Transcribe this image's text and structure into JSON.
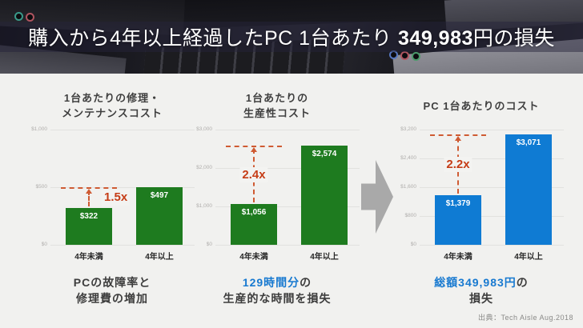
{
  "header": {
    "title_prefix": "購入から4年以上経過したPC 1台あたり ",
    "title_number": "349,983",
    "title_suffix": "円の損失"
  },
  "footer": {
    "source": "出典：Tech Aisle Aug.2018"
  },
  "icons": {
    "flow_arrow": "right-block-arrow"
  },
  "colors": {
    "green_bar": "#1e7b1f",
    "blue_bar": "#0f7bd3",
    "accent_red": "#c63d17",
    "highlight_blue": "#1779d0",
    "background": "#f1f1ef"
  },
  "chart_data": [
    {
      "type": "bar",
      "title": "1台あたりの修理・メンテナンスコスト",
      "title_lines": [
        "1台あたりの修理・",
        "メンテナンスコスト"
      ],
      "categories": [
        "4年未満",
        "4年以上"
      ],
      "values": [
        322,
        497
      ],
      "bar_labels": [
        "$322",
        "$497"
      ],
      "multiplier": "1.5x",
      "bar_color": "#1e7b1f",
      "ylim": [
        0,
        1000
      ],
      "grid": true,
      "legend": "none",
      "ticks": [
        {
          "value": 0,
          "label": "$0"
        },
        {
          "value": 500,
          "label": "$500"
        },
        {
          "value": 1000,
          "label": "$1,000"
        }
      ],
      "caption": {
        "line1_highlight": "",
        "line1_rest": "PCの故障率と",
        "line2": "修理費の増加"
      }
    },
    {
      "type": "bar",
      "title": "1台あたりの生産性コスト",
      "title_lines": [
        "1台あたりの",
        "生産性コスト"
      ],
      "categories": [
        "4年未満",
        "4年以上"
      ],
      "values": [
        1056,
        2574
      ],
      "bar_labels": [
        "$1,056",
        "$2,574"
      ],
      "multiplier": "2.4x",
      "bar_color": "#1e7b1f",
      "ylim": [
        0,
        3000
      ],
      "grid": true,
      "legend": "none",
      "ticks": [
        {
          "value": 0,
          "label": "$0"
        },
        {
          "value": 1000,
          "label": "$1,000"
        },
        {
          "value": 2000,
          "label": "$2,000"
        },
        {
          "value": 3000,
          "label": "$3,000"
        }
      ],
      "caption": {
        "line1_highlight": "129時間分",
        "line1_rest": "の",
        "line2": "生産的な時間を損失"
      }
    },
    {
      "type": "bar",
      "title": "PC 1台あたりのコスト",
      "title_lines": [
        "PC 1台あたりのコスト"
      ],
      "categories": [
        "4年未満",
        "4年以上"
      ],
      "values": [
        1379,
        3071
      ],
      "bar_labels": [
        "$1,379",
        "$3,071"
      ],
      "multiplier": "2.2x",
      "bar_color": "#0f7bd3",
      "ylim": [
        0,
        3200
      ],
      "grid": true,
      "legend": "none",
      "ticks": [
        {
          "value": 0,
          "label": "$0"
        },
        {
          "value": 800,
          "label": "$800"
        },
        {
          "value": 1600,
          "label": "$1,600"
        },
        {
          "value": 2400,
          "label": "$2,400"
        },
        {
          "value": 3200,
          "label": "$3,200"
        }
      ],
      "caption": {
        "line1_highlight": "総額349,983円",
        "line1_rest": "の",
        "line2": "損失"
      }
    }
  ]
}
